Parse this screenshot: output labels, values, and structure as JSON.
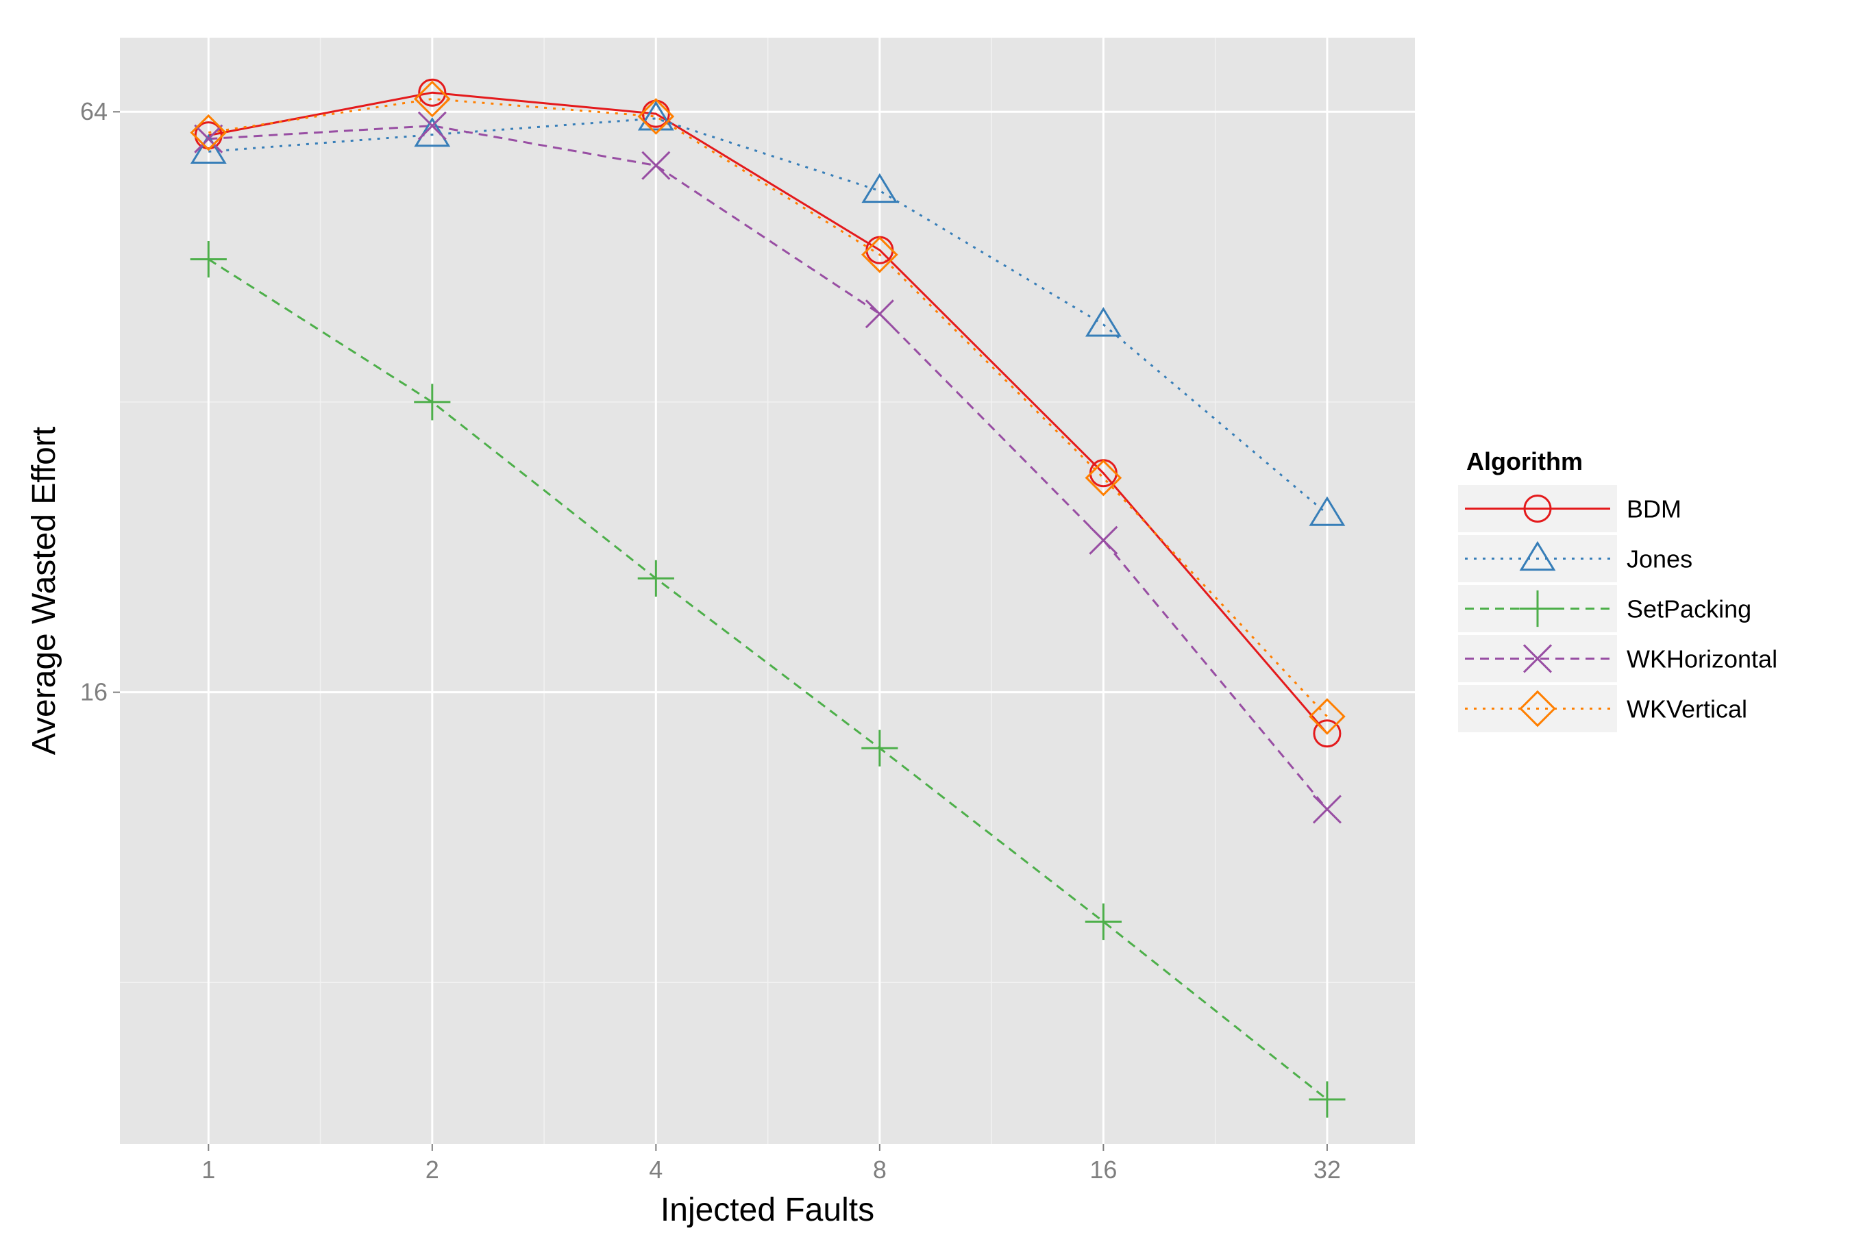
{
  "chart_data": {
    "type": "line",
    "xlabel": "Injected Faults",
    "ylabel": "Average Wasted Effort",
    "x": [
      1,
      2,
      4,
      8,
      16,
      32
    ],
    "x_tick_labels": [
      "1",
      "2",
      "4",
      "8",
      "16",
      "32"
    ],
    "y_tick_labels": [
      "16",
      "64"
    ],
    "y_ticks": [
      16,
      64
    ],
    "x_scale": "log2",
    "y_scale": "log2",
    "xlim": [
      0.76,
      42
    ],
    "ylim": [
      5.44,
      76.4
    ],
    "grid": true,
    "legend": {
      "title": "Algorithm",
      "position": "right"
    },
    "series": [
      {
        "name": "BDM",
        "color": "#e41a1c",
        "linestyle": "solid",
        "marker": "circle",
        "values": [
          60.5,
          67.0,
          63.7,
          46.0,
          27.0,
          14.5
        ]
      },
      {
        "name": "Jones",
        "color": "#377eb8",
        "linestyle": "dotted",
        "marker": "triangle",
        "values": [
          58.2,
          60.6,
          63.0,
          53.0,
          38.5,
          24.5
        ]
      },
      {
        "name": "SetPacking",
        "color": "#4daf4a",
        "linestyle": "dashed",
        "marker": "plus",
        "values": [
          45.0,
          32.0,
          21.0,
          14.0,
          9.25,
          6.05
        ]
      },
      {
        "name": "WKHorizontal",
        "color": "#984ea3",
        "linestyle": "dashed",
        "marker": "x",
        "values": [
          60.0,
          61.9,
          56.3,
          39.5,
          23.0,
          12.1
        ]
      },
      {
        "name": "WKVertical",
        "color": "#ff7f00",
        "linestyle": "dotted",
        "marker": "diamond",
        "values": [
          60.9,
          66.0,
          63.3,
          45.5,
          26.7,
          15.1
        ]
      }
    ]
  }
}
